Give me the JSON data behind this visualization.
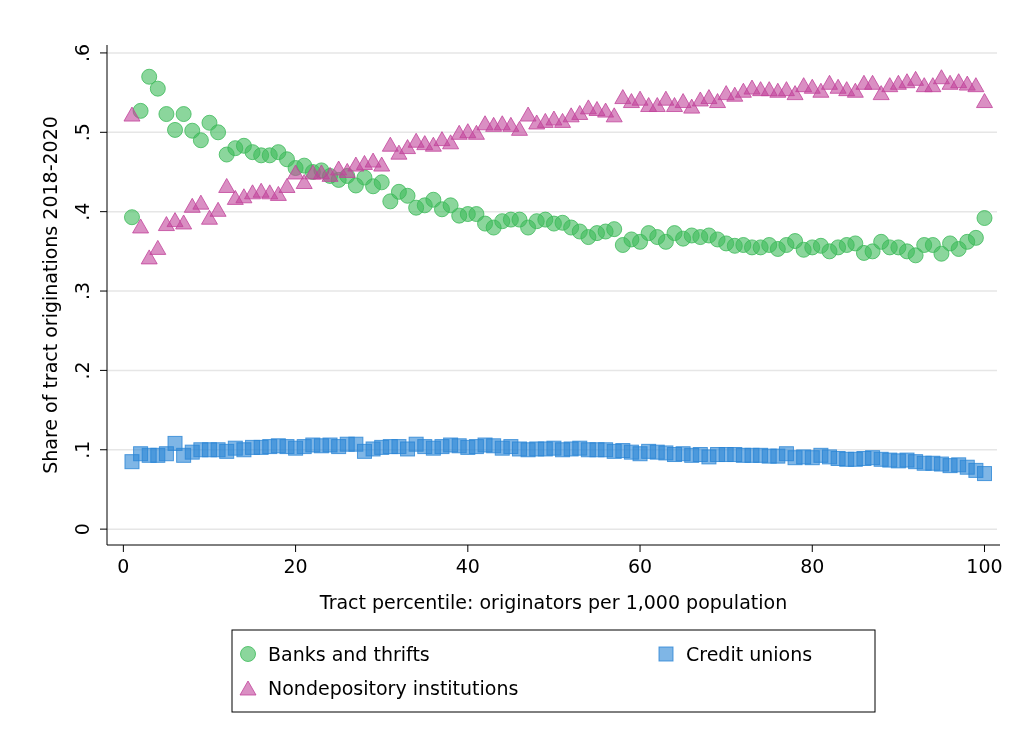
{
  "chart_data": {
    "type": "scatter",
    "xlabel": "Tract percentile: originators per 1,000 population",
    "ylabel": "Share of tract originations 2018-2020",
    "xlim": [
      -1.9,
      101.8
    ],
    "xticks": [
      0,
      20,
      40,
      60,
      80,
      100
    ],
    "ylim": [
      -0.02,
      0.61
    ],
    "yticks": [
      {
        "value": 0,
        "label": "0"
      },
      {
        "value": 0.1,
        "label": ".1"
      },
      {
        "value": 0.2,
        "label": ".2"
      },
      {
        "value": 0.3,
        "label": ".3"
      },
      {
        "value": 0.4,
        "label": ".4"
      },
      {
        "value": 0.5,
        "label": ".5"
      },
      {
        "value": 0.6,
        "label": ".6"
      }
    ],
    "grid": "y",
    "legend": "bottom",
    "x": [
      1,
      2,
      3,
      4,
      5,
      6,
      7,
      8,
      9,
      10,
      11,
      12,
      13,
      14,
      15,
      16,
      17,
      18,
      19,
      20,
      21,
      22,
      23,
      24,
      25,
      26,
      27,
      28,
      29,
      30,
      31,
      32,
      33,
      34,
      35,
      36,
      37,
      38,
      39,
      40,
      41,
      42,
      43,
      44,
      45,
      46,
      47,
      48,
      49,
      50,
      51,
      52,
      53,
      54,
      55,
      56,
      57,
      58,
      59,
      60,
      61,
      62,
      63,
      64,
      65,
      66,
      67,
      68,
      69,
      70,
      71,
      72,
      73,
      74,
      75,
      76,
      77,
      78,
      79,
      80,
      81,
      82,
      83,
      84,
      85,
      86,
      87,
      88,
      89,
      90,
      91,
      92,
      93,
      94,
      95,
      96,
      97,
      98,
      99,
      100
    ],
    "series": [
      {
        "name": "Banks and thrifts",
        "color": "#3dba5a",
        "marker": "circle",
        "values": [
          0.393,
          0.527,
          0.57,
          0.555,
          0.523,
          0.503,
          0.523,
          0.502,
          0.49,
          0.512,
          0.5,
          0.472,
          0.48,
          0.483,
          0.475,
          0.471,
          0.471,
          0.475,
          0.466,
          0.455,
          0.458,
          0.45,
          0.452,
          0.445,
          0.44,
          0.445,
          0.433,
          0.443,
          0.432,
          0.437,
          0.413,
          0.425,
          0.42,
          0.405,
          0.408,
          0.415,
          0.403,
          0.408,
          0.395,
          0.397,
          0.397,
          0.385,
          0.38,
          0.388,
          0.39,
          0.39,
          0.38,
          0.388,
          0.39,
          0.385,
          0.386,
          0.38,
          0.375,
          0.368,
          0.373,
          0.375,
          0.378,
          0.358,
          0.365,
          0.362,
          0.373,
          0.368,
          0.362,
          0.373,
          0.366,
          0.37,
          0.368,
          0.37,
          0.365,
          0.36,
          0.357,
          0.358,
          0.355,
          0.355,
          0.358,
          0.353,
          0.358,
          0.363,
          0.352,
          0.355,
          0.357,
          0.35,
          0.355,
          0.358,
          0.36,
          0.348,
          0.35,
          0.362,
          0.355,
          0.355,
          0.35,
          0.345,
          0.358,
          0.358,
          0.347,
          0.36,
          0.353,
          0.362,
          0.367,
          0.392
        ]
      },
      {
        "name": "Credit unions",
        "color": "#2a86d6",
        "marker": "square",
        "values": [
          0.085,
          0.095,
          0.093,
          0.093,
          0.095,
          0.108,
          0.093,
          0.097,
          0.1,
          0.1,
          0.1,
          0.098,
          0.102,
          0.1,
          0.103,
          0.103,
          0.104,
          0.105,
          0.104,
          0.102,
          0.104,
          0.106,
          0.105,
          0.106,
          0.104,
          0.107,
          0.107,
          0.098,
          0.101,
          0.103,
          0.104,
          0.104,
          0.101,
          0.107,
          0.104,
          0.102,
          0.104,
          0.106,
          0.105,
          0.103,
          0.104,
          0.106,
          0.105,
          0.102,
          0.104,
          0.101,
          0.1,
          0.101,
          0.101,
          0.102,
          0.1,
          0.101,
          0.102,
          0.1,
          0.1,
          0.1,
          0.098,
          0.099,
          0.097,
          0.095,
          0.098,
          0.097,
          0.096,
          0.094,
          0.095,
          0.093,
          0.094,
          0.091,
          0.094,
          0.094,
          0.094,
          0.093,
          0.093,
          0.093,
          0.092,
          0.092,
          0.095,
          0.09,
          0.091,
          0.09,
          0.093,
          0.091,
          0.089,
          0.088,
          0.088,
          0.089,
          0.09,
          0.088,
          0.087,
          0.086,
          0.087,
          0.085,
          0.083,
          0.083,
          0.082,
          0.08,
          0.081,
          0.078,
          0.074,
          0.07
        ]
      },
      {
        "name": "Nondepository institutions",
        "color": "#c2449b",
        "marker": "triangle",
        "values": [
          0.523,
          0.382,
          0.343,
          0.355,
          0.385,
          0.39,
          0.387,
          0.408,
          0.412,
          0.393,
          0.403,
          0.433,
          0.418,
          0.42,
          0.425,
          0.427,
          0.425,
          0.423,
          0.433,
          0.45,
          0.438,
          0.45,
          0.45,
          0.447,
          0.455,
          0.452,
          0.46,
          0.462,
          0.465,
          0.46,
          0.485,
          0.475,
          0.482,
          0.49,
          0.487,
          0.485,
          0.492,
          0.488,
          0.5,
          0.502,
          0.5,
          0.512,
          0.51,
          0.512,
          0.51,
          0.505,
          0.523,
          0.513,
          0.515,
          0.518,
          0.515,
          0.522,
          0.525,
          0.532,
          0.53,
          0.528,
          0.522,
          0.545,
          0.54,
          0.543,
          0.535,
          0.535,
          0.543,
          0.535,
          0.54,
          0.533,
          0.542,
          0.545,
          0.54,
          0.55,
          0.548,
          0.553,
          0.557,
          0.555,
          0.555,
          0.553,
          0.555,
          0.55,
          0.56,
          0.558,
          0.553,
          0.563,
          0.558,
          0.555,
          0.553,
          0.563,
          0.563,
          0.55,
          0.56,
          0.563,
          0.565,
          0.568,
          0.56,
          0.56,
          0.57,
          0.563,
          0.565,
          0.562,
          0.56,
          0.54
        ]
      }
    ]
  }
}
